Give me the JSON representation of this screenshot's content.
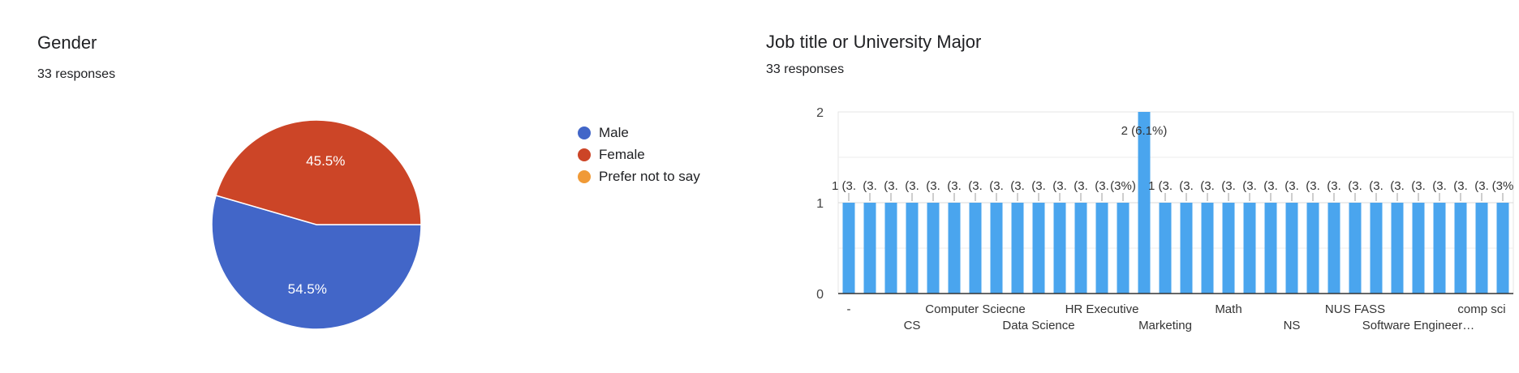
{
  "chart_data": [
    {
      "type": "pie",
      "title": "Gender",
      "subtitle": "33 responses",
      "slices": [
        {
          "label": "Male",
          "value": 54.5,
          "display": "54.5%",
          "color": "#4266c8"
        },
        {
          "label": "Female",
          "value": 45.5,
          "display": "45.5%",
          "color": "#cc4527"
        },
        {
          "label": "Prefer not to say",
          "value": 0,
          "display": "",
          "color": "#f09a37"
        }
      ],
      "legend_position": "right"
    },
    {
      "type": "bar",
      "title": "Job title or University Major",
      "subtitle": "33 responses",
      "color": "#4aa5ee",
      "ylim": [
        0,
        2
      ],
      "yticks": [
        "0",
        "1",
        "2"
      ],
      "grid": true,
      "values": [
        1,
        1,
        1,
        1,
        1,
        1,
        1,
        1,
        1,
        1,
        1,
        1,
        1,
        1,
        2,
        1,
        1,
        1,
        1,
        1,
        1,
        1,
        1,
        1,
        1,
        1,
        1,
        1,
        1,
        1,
        1,
        1
      ],
      "data_labels": [
        "1 (3.",
        "(3.",
        "(3.",
        "(3.",
        "(3.",
        "(3.",
        "(3.",
        "(3.",
        "(3.",
        "(3.",
        "(3.",
        "(3.",
        "(3.",
        "(3%)",
        "2 (6.1%)",
        "1 (3.",
        "(3.",
        "(3.",
        "(3.",
        "(3.",
        "(3.",
        "(3.",
        "(3.",
        "(3.",
        "(3.",
        "(3.",
        "(3.",
        "(3.",
        "(3.",
        "(3.",
        "(3.",
        "(3%"
      ],
      "x_tick_labels": [
        {
          "text": "-",
          "bar": 0,
          "row": 0
        },
        {
          "text": "CS",
          "bar": 3,
          "row": 1
        },
        {
          "text": "Computer Sciecne",
          "bar": 6,
          "row": 0
        },
        {
          "text": "Data Science",
          "bar": 9,
          "row": 1
        },
        {
          "text": "HR Executive",
          "bar": 12,
          "row": 0
        },
        {
          "text": "Marketing",
          "bar": 15,
          "row": 1
        },
        {
          "text": "Math",
          "bar": 18,
          "row": 0
        },
        {
          "text": "NS",
          "bar": 21,
          "row": 1
        },
        {
          "text": "NUS FASS",
          "bar": 24,
          "row": 0
        },
        {
          "text": "Software Engineer…",
          "bar": 27,
          "row": 1
        },
        {
          "text": "comp sci",
          "bar": 30,
          "row": 0
        }
      ]
    }
  ]
}
